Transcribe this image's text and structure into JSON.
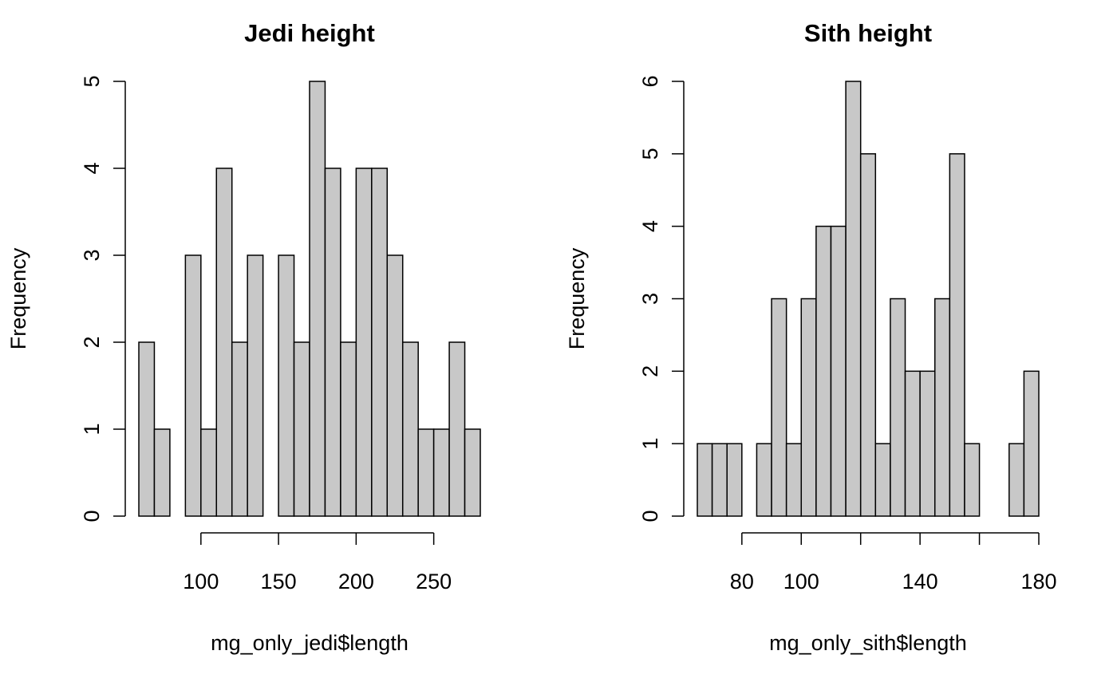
{
  "chart_data": [
    {
      "type": "histogram",
      "title": "Jedi height",
      "xlabel": "mg_only_jedi$length",
      "ylabel": "Frequency",
      "bins": [
        60,
        70,
        80,
        90,
        100,
        110,
        120,
        130,
        140,
        150,
        160,
        170,
        180,
        190,
        200,
        210,
        220,
        230,
        240,
        250,
        260,
        270,
        280
      ],
      "values": [
        2,
        1,
        0,
        3,
        1,
        4,
        2,
        3,
        0,
        3,
        2,
        5,
        4,
        2,
        4,
        4,
        3,
        2,
        1,
        1,
        2,
        1
      ],
      "color": "#c8c8c8",
      "xlim": [
        60,
        280
      ],
      "xticks": [
        100,
        150,
        200,
        250
      ],
      "ylim": [
        0,
        5
      ],
      "yticks": [
        0,
        1,
        2,
        3,
        4,
        5
      ]
    },
    {
      "type": "histogram",
      "title": "Sith height",
      "xlabel": "mg_only_sith$length",
      "ylabel": "Frequency",
      "bins": [
        65,
        70,
        75,
        80,
        85,
        90,
        95,
        100,
        105,
        110,
        115,
        120,
        125,
        130,
        135,
        140,
        145,
        150,
        155,
        160,
        165,
        170,
        175,
        180
      ],
      "values": [
        1,
        1,
        1,
        0,
        1,
        3,
        1,
        3,
        4,
        4,
        6,
        5,
        1,
        3,
        2,
        2,
        3,
        5,
        1,
        0,
        0,
        1,
        2
      ],
      "color": "#c8c8c8",
      "xlim": [
        65,
        180
      ],
      "xticks": [
        80,
        100,
        {
          "value": 120
        },
        140,
        {
          "value": 160
        },
        180
      ],
      "ylim": [
        0,
        6
      ],
      "yticks": [
        0,
        1,
        2,
        3,
        4,
        5,
        6
      ]
    }
  ]
}
